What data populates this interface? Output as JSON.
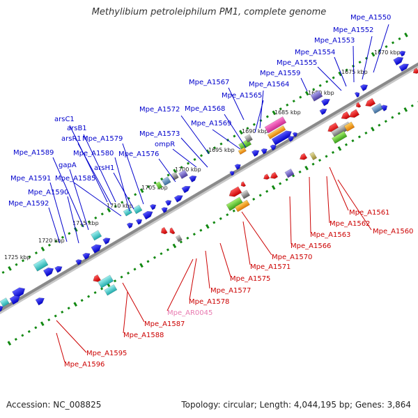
{
  "title": "Methylibium petroleiphilum PM1, complete genome",
  "footer": {
    "accession": "Accession: NC_008825",
    "stats": "Topology: circular; Length: 4,044,195 bp; Genes: 3,864"
  },
  "colors": {
    "forward_label": "#0000cc",
    "reverse_label": "#cc0000",
    "rna_label": "#e87ab0",
    "forward_gene": "#0000ee",
    "reverse_gene": "#e60000",
    "ruler_tick": "#118811",
    "backbone": "#8a8a8a"
  },
  "ruler_labels": [
    {
      "text": "1670 kbp"
    },
    {
      "text": "1675 kbp"
    },
    {
      "text": "1680 kbp"
    },
    {
      "text": "1685 kbp"
    },
    {
      "text": "1690 kbp"
    },
    {
      "text": "1695 kbp"
    },
    {
      "text": "1700 kbp"
    },
    {
      "text": "1705 kbp"
    },
    {
      "text": "1710 kbp"
    },
    {
      "text": "1715 kbp"
    },
    {
      "text": "1720 kbp"
    },
    {
      "text": "1725 kbp"
    }
  ],
  "forward_labels": [
    {
      "text": "Mpe_A1550"
    },
    {
      "text": "Mpe_A1552"
    },
    {
      "text": "Mpe_A1553"
    },
    {
      "text": "Mpe_A1554"
    },
    {
      "text": "Mpe_A1555"
    },
    {
      "text": "Mpe_A1559"
    },
    {
      "text": "Mpe_A1567"
    },
    {
      "text": "Mpe_A1564"
    },
    {
      "text": "Mpe_A1565"
    },
    {
      "text": "Mpe_A1572"
    },
    {
      "text": "Mpe_A1568"
    },
    {
      "text": "Mpe_A1569"
    },
    {
      "text": "Mpe_A1573"
    },
    {
      "text": "ompR"
    },
    {
      "text": "arsC1"
    },
    {
      "text": "arsB1"
    },
    {
      "text": "arsR1"
    },
    {
      "text": "Mpe_A1579"
    },
    {
      "text": "Mpe_A1580"
    },
    {
      "text": "Mpe_A1576"
    },
    {
      "text": "Mpe_A1589"
    },
    {
      "text": "gapA"
    },
    {
      "text": "arsH1"
    },
    {
      "text": "Mpe_A1591"
    },
    {
      "text": "Mpe_A1585"
    },
    {
      "text": "Mpe_A1590"
    },
    {
      "text": "Mpe_A1592"
    }
  ],
  "reverse_labels": [
    {
      "text": "Mpe_A1561"
    },
    {
      "text": "Mpe_A1562"
    },
    {
      "text": "Mpe_A1560"
    },
    {
      "text": "Mpe_A1563"
    },
    {
      "text": "Mpe_A1566"
    },
    {
      "text": "Mpe_A1570"
    },
    {
      "text": "Mpe_A1571"
    },
    {
      "text": "Mpe_A1575"
    },
    {
      "text": "Mpe_A1577"
    },
    {
      "text": "Mpe_A1578"
    },
    {
      "text": "Mpe_AR0045"
    },
    {
      "text": "Mpe_A1587"
    },
    {
      "text": "Mpe_A1588"
    },
    {
      "text": "Mpe_A1595"
    },
    {
      "text": "Mpe_A1596"
    }
  ]
}
